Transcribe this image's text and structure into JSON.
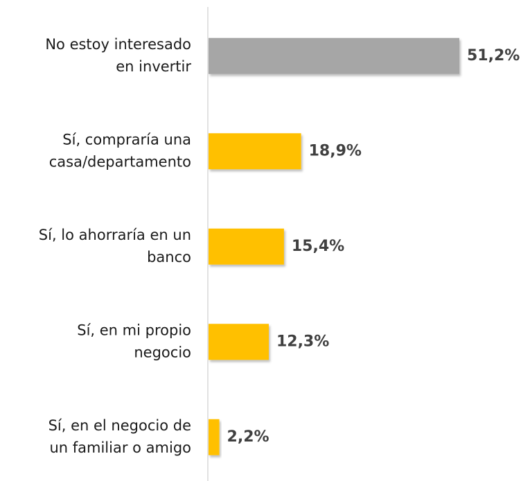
{
  "chart_data": {
    "type": "barh",
    "categories": [
      [
        "No estoy interesado",
        "en invertir"
      ],
      [
        "Sí, compraría una",
        "casa/departamento"
      ],
      [
        "Sí, lo ahorraría en un",
        "banco"
      ],
      [
        "Sí, en mi propio",
        "negocio"
      ],
      [
        "Sí, en el negocio de",
        "un familiar o amigo"
      ]
    ],
    "values": [
      51.2,
      18.9,
      15.4,
      12.3,
      2.2
    ],
    "value_labels": [
      "51,2%",
      "18,9%",
      "15,4%",
      "12,3%",
      "2,2%"
    ],
    "colors": [
      "#a6a6a6",
      "#ffc000",
      "#ffc000",
      "#ffc000",
      "#ffc000"
    ]
  }
}
